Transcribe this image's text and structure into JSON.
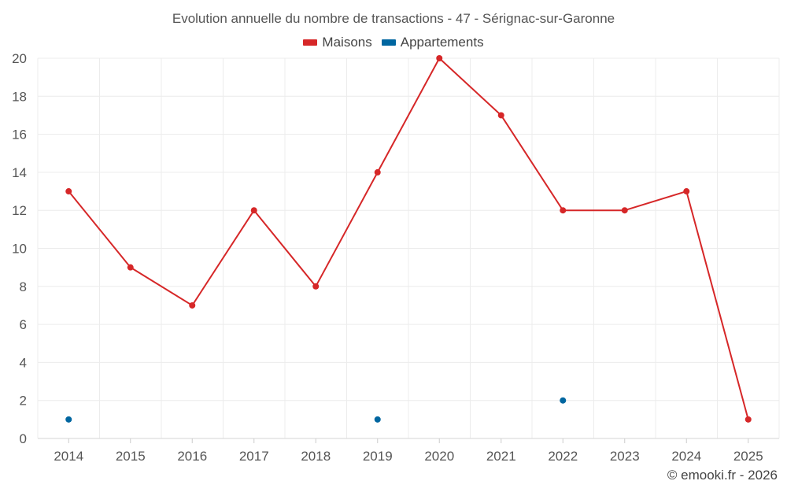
{
  "chart_data": {
    "type": "line",
    "title": "Evolution annuelle du nombre de transactions - 47 - Sérignac-sur-Garonne",
    "xlabel": "",
    "ylabel": "",
    "categories": [
      "2014",
      "2015",
      "2016",
      "2017",
      "2018",
      "2019",
      "2020",
      "2021",
      "2022",
      "2023",
      "2024",
      "2025"
    ],
    "yticks": [
      "0",
      "2",
      "4",
      "6",
      "8",
      "10",
      "12",
      "14",
      "16",
      "18",
      "20"
    ],
    "ylim": [
      0,
      20
    ],
    "grid": true,
    "legend_position": "top-center",
    "series": [
      {
        "name": "Maisons",
        "color": "#d62728",
        "values": [
          13,
          9,
          7,
          12,
          8,
          14,
          20,
          17,
          12,
          12,
          13,
          1
        ]
      },
      {
        "name": "Appartements",
        "color": "#0066a0",
        "values": [
          1,
          null,
          null,
          null,
          null,
          1,
          null,
          null,
          2,
          null,
          null,
          null
        ]
      }
    ]
  },
  "credit": "© emooki.fr - 2026"
}
